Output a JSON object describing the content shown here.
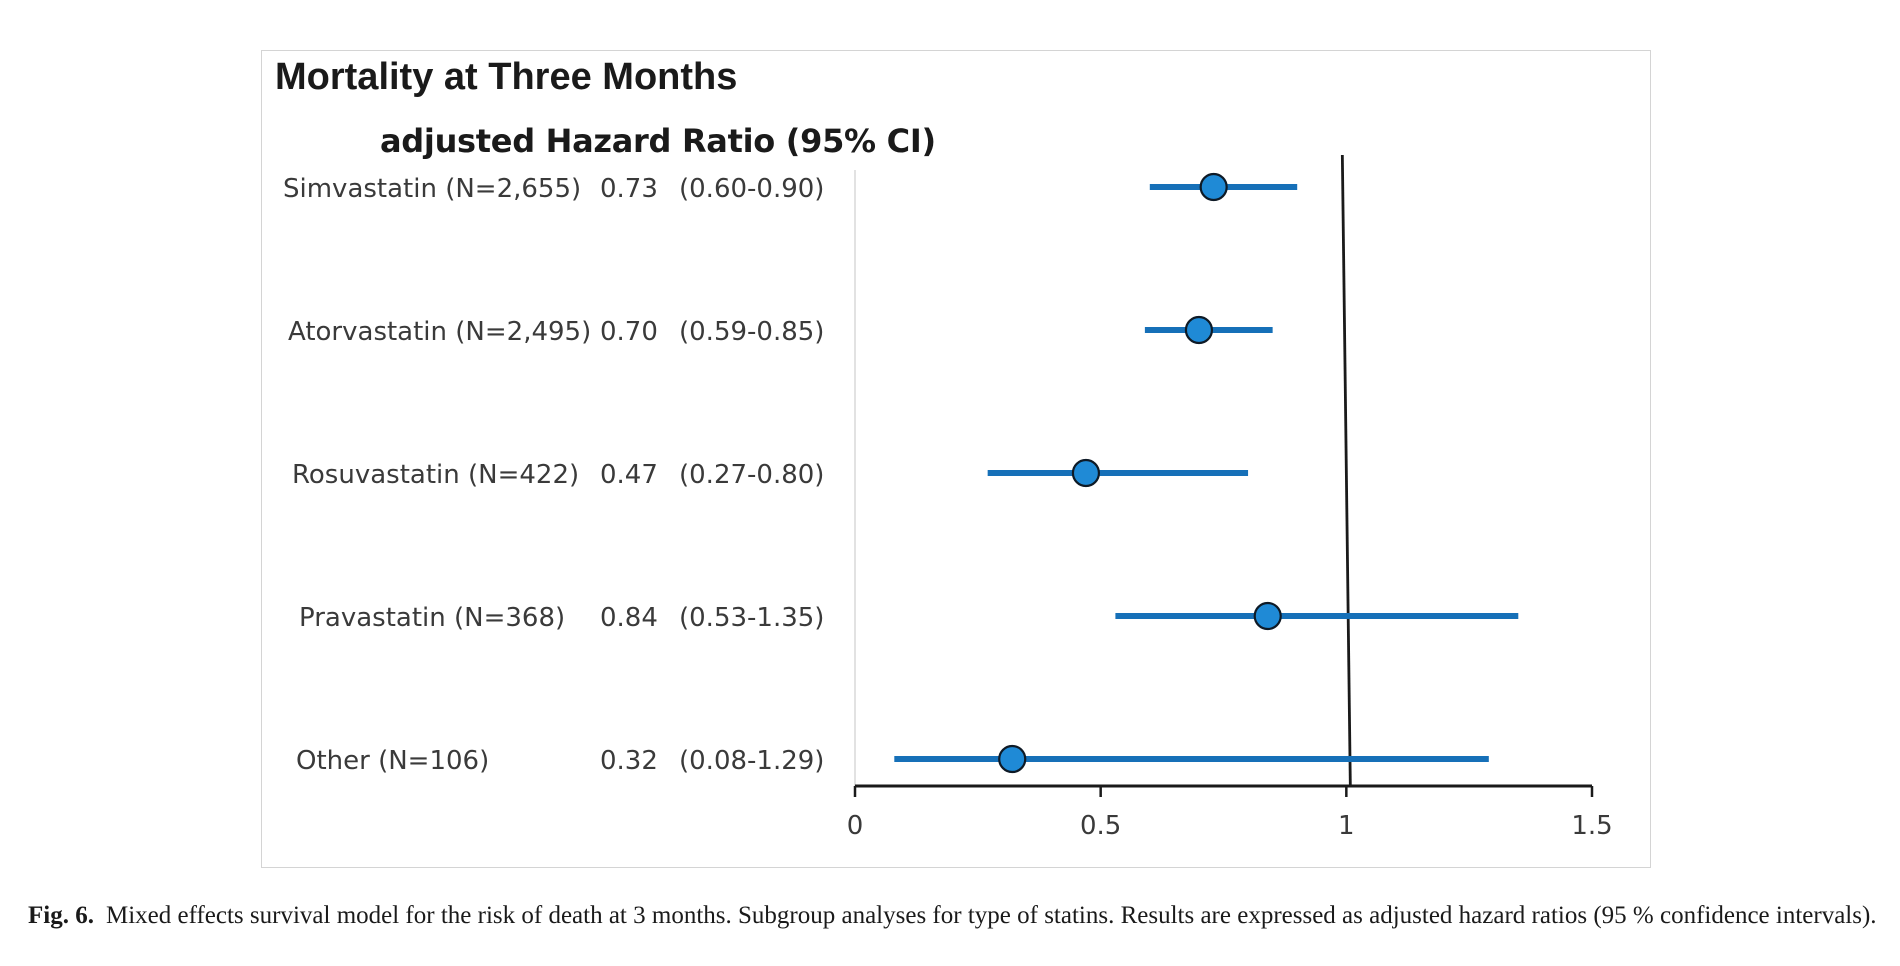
{
  "chart_data": {
    "type": "forest",
    "title": "Mortality at Three Months",
    "column_header": "adjusted Hazard Ratio (95% CI)",
    "xlim": [
      0,
      1.5
    ],
    "x_ticks": [
      0,
      0.5,
      1,
      1.5
    ],
    "x_tick_labels": [
      "0",
      "0.5",
      "1",
      "1.5"
    ],
    "reference_line": 1,
    "rows": [
      {
        "label": "Simvastatin (N=2,655)",
        "hr": 0.73,
        "ci_low": 0.6,
        "ci_high": 0.9,
        "hr_text": "0.73",
        "ci_text": "(0.60-0.90)"
      },
      {
        "label": "Atorvastatin (N=2,495)",
        "hr": 0.7,
        "ci_low": 0.59,
        "ci_high": 0.85,
        "hr_text": "0.70",
        "ci_text": "(0.59-0.85)"
      },
      {
        "label": "Rosuvastatin (N=422)",
        "hr": 0.47,
        "ci_low": 0.27,
        "ci_high": 0.8,
        "hr_text": "0.47",
        "ci_text": "(0.27-0.80)"
      },
      {
        "label": "Pravastatin (N=368)",
        "hr": 0.84,
        "ci_low": 0.53,
        "ci_high": 1.35,
        "hr_text": "0.84",
        "ci_text": "(0.53-1.35)"
      },
      {
        "label": "Other (N=106)",
        "hr": 0.32,
        "ci_low": 0.08,
        "ci_high": 1.29,
        "hr_text": "0.32",
        "ci_text": "(0.08-1.29)"
      }
    ]
  },
  "colors": {
    "marker": "#1f8ad6",
    "ci_line": "#1670b8",
    "axis": "#1a1a1a",
    "frame": "#d4d4d4"
  },
  "caption": {
    "label": "Fig. 6.",
    "text": "Mixed effects survival model for the risk of death at 3 months. Subgroup analyses for type of statins. Results are expressed as adjusted hazard ratios (95 % confidence intervals)."
  }
}
